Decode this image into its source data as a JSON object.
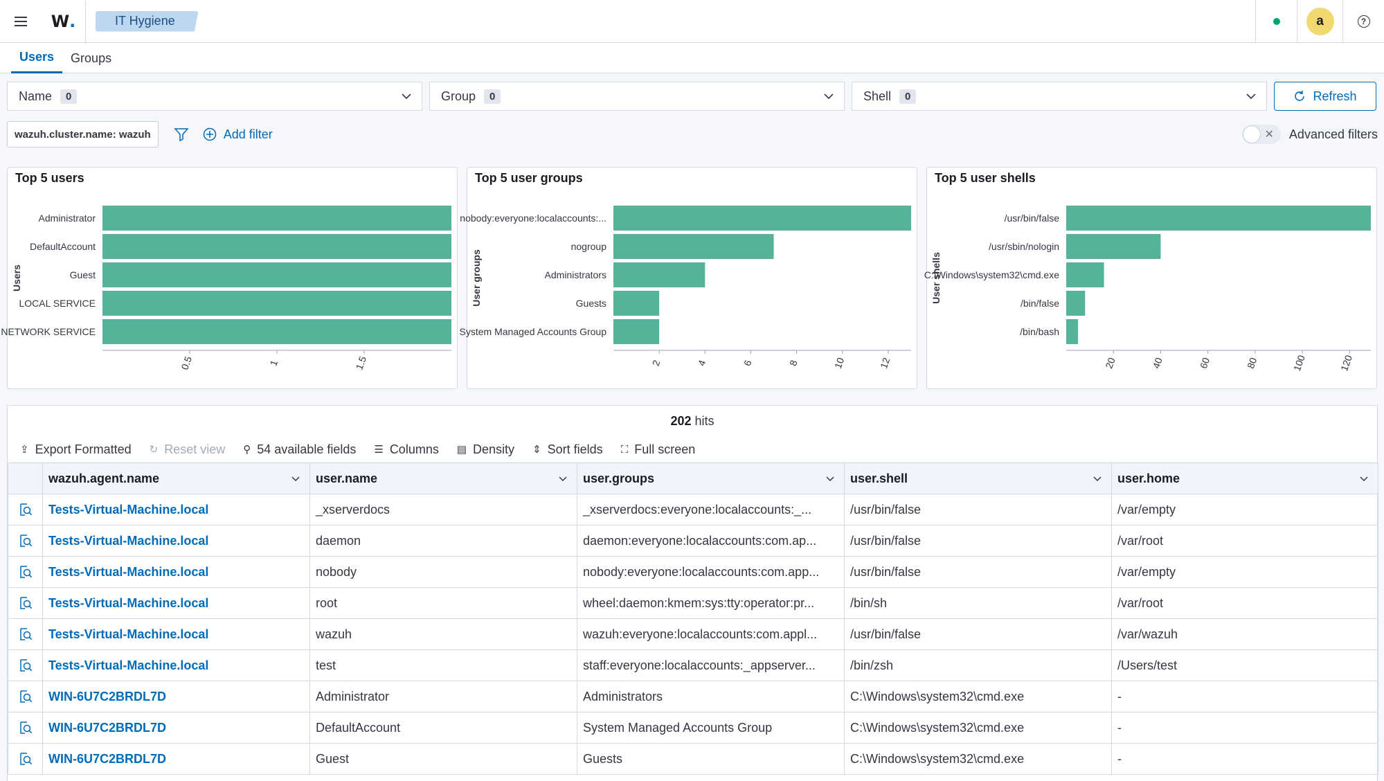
{
  "header": {
    "logo_text": "W",
    "logo_dot": ".",
    "breadcrumb": "IT Hygiene",
    "avatar_letter": "a",
    "help_glyph": "?"
  },
  "tabs": [
    {
      "label": "Users",
      "active": true
    },
    {
      "label": "Groups",
      "active": false
    }
  ],
  "filters": {
    "name": {
      "label": "Name",
      "count": "0"
    },
    "group": {
      "label": "Group",
      "count": "0"
    },
    "shell": {
      "label": "Shell",
      "count": "0"
    },
    "refresh_label": "Refresh"
  },
  "query": {
    "pill": "wazuh.cluster.name: wazuh",
    "add_filter": "Add filter",
    "advanced_filters": "Advanced filters"
  },
  "chart_data": [
    {
      "type": "bar",
      "orientation": "horizontal",
      "title": "Top 5 users",
      "ylabel": "Users",
      "categories": [
        "Administrator",
        "DefaultAccount",
        "Guest",
        "LOCAL SERVICE",
        "NETWORK SERVICE"
      ],
      "values": [
        2,
        2,
        2,
        2,
        2
      ],
      "xlim": [
        0,
        2
      ],
      "xticks": [
        "0.5",
        "1",
        "1.5"
      ],
      "color": "#54b399"
    },
    {
      "type": "bar",
      "orientation": "horizontal",
      "title": "Top 5 user groups",
      "ylabel": "User groups",
      "categories": [
        "nobody:everyone:localaccounts:...",
        "nogroup",
        "Administrators",
        "Guests",
        "System Managed Accounts Group"
      ],
      "values": [
        13,
        7,
        4,
        2,
        2
      ],
      "xlim": [
        0,
        13
      ],
      "xticks": [
        "2",
        "4",
        "6",
        "8",
        "10",
        "12"
      ],
      "color": "#54b399"
    },
    {
      "type": "bar",
      "orientation": "horizontal",
      "title": "Top 5 user shells",
      "ylabel": "User shells",
      "categories": [
        "/usr/bin/false",
        "/usr/sbin/nologin",
        "C:\\Windows\\system32\\cmd.exe",
        "/bin/false",
        "/bin/bash"
      ],
      "values": [
        129,
        40,
        16,
        8,
        5
      ],
      "xlim": [
        0,
        129
      ],
      "xticks": [
        "20",
        "40",
        "60",
        "80",
        "100",
        "120"
      ],
      "color": "#54b399"
    }
  ],
  "table": {
    "hits_count": "202",
    "hits_label": "hits",
    "toolbar": {
      "export": "Export Formatted",
      "reset": "Reset view",
      "fields": "54 available fields",
      "columns": "Columns",
      "density": "Density",
      "sort": "Sort fields",
      "fullscreen": "Full screen"
    },
    "columns": [
      "wazuh.agent.name",
      "user.name",
      "user.groups",
      "user.shell",
      "user.home"
    ],
    "rows": [
      [
        "Tests-Virtual-Machine.local",
        "_xserverdocs",
        "_xserverdocs:everyone:localaccounts:_...",
        "/usr/bin/false",
        "/var/empty"
      ],
      [
        "Tests-Virtual-Machine.local",
        "daemon",
        "daemon:everyone:localaccounts:com.ap...",
        "/usr/bin/false",
        "/var/root"
      ],
      [
        "Tests-Virtual-Machine.local",
        "nobody",
        "nobody:everyone:localaccounts:com.app...",
        "/usr/bin/false",
        "/var/empty"
      ],
      [
        "Tests-Virtual-Machine.local",
        "root",
        "wheel:daemon:kmem:sys:tty:operator:pr...",
        "/bin/sh",
        "/var/root"
      ],
      [
        "Tests-Virtual-Machine.local",
        "wazuh",
        "wazuh:everyone:localaccounts:com.appl...",
        "/usr/bin/false",
        "/var/wazuh"
      ],
      [
        "Tests-Virtual-Machine.local",
        "test",
        "staff:everyone:localaccounts:_appserver...",
        "/bin/zsh",
        "/Users/test"
      ],
      [
        "WIN-6U7C2BRDL7D",
        "Administrator",
        "Administrators",
        "C:\\Windows\\system32\\cmd.exe",
        "-"
      ],
      [
        "WIN-6U7C2BRDL7D",
        "DefaultAccount",
        "System Managed Accounts Group",
        "C:\\Windows\\system32\\cmd.exe",
        "-"
      ],
      [
        "WIN-6U7C2BRDL7D",
        "Guest",
        "Guests",
        "C:\\Windows\\system32\\cmd.exe",
        "-"
      ]
    ]
  }
}
